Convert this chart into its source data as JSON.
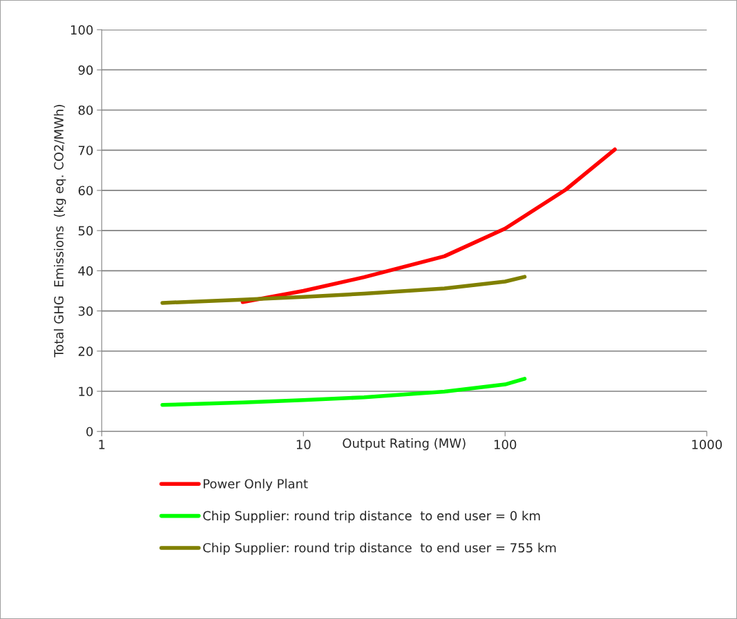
{
  "chart_data": {
    "type": "line",
    "xlabel": "Output Rating (MW)",
    "ylabel": "Total GHG  Emissions  (kg eq. CO2/MWh)",
    "log": "x",
    "xlim": [
      1,
      1000
    ],
    "xticks": [
      1,
      10,
      100,
      1000
    ],
    "ylim": [
      0,
      100
    ],
    "yticks": [
      0,
      10,
      20,
      30,
      40,
      50,
      60,
      70,
      80,
      90,
      100
    ],
    "grid": "y",
    "legend": "bottom",
    "marker": "none",
    "line_style": "solid",
    "series": [
      {
        "name": "Power Only Plant",
        "color": "#ff0000",
        "x": [
          5,
          10,
          20,
          50,
          100,
          200,
          350
        ],
        "values": [
          32.2,
          35.0,
          38.4,
          43.6,
          50.5,
          60.2,
          70.2
        ]
      },
      {
        "name": "Chip Supplier: round trip distance  to end user = 0 km",
        "color": "#00ff00",
        "x": [
          2,
          5,
          10,
          20,
          50,
          100,
          125
        ],
        "values": [
          6.6,
          7.2,
          7.8,
          8.5,
          9.9,
          11.7,
          13.1
        ]
      },
      {
        "name": "Chip Supplier: round trip distance  to end user = 755 km",
        "color": "#808000",
        "x": [
          2,
          5,
          10,
          20,
          50,
          100,
          125
        ],
        "values": [
          32.0,
          32.8,
          33.5,
          34.3,
          35.6,
          37.3,
          38.5
        ]
      }
    ]
  }
}
